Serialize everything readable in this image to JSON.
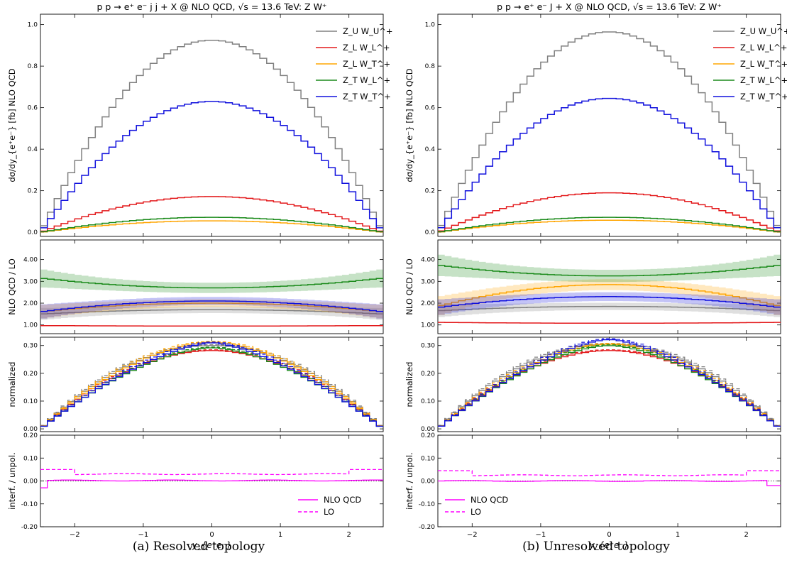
{
  "panels": [
    {
      "title": "p p → e⁺ e⁻ j j + X @ NLO QCD, √s = 13.6 TeV: Z W⁺",
      "caption": "(a)  Resolved topology",
      "ylabels": [
        "dσ/dy_{e⁺e⁻} [fb] NLO QCD",
        "NLO QCD / LO",
        "normalized",
        "interf. / unpol."
      ],
      "xlabel": "y_{e⁺e⁻}"
    },
    {
      "title": "p p → e⁺ e⁻ J + X @ NLO QCD, √s = 13.6 TeV: Z W⁺",
      "caption": "(b)  Unresolved topology",
      "ylabels": [
        "dσ/dy_{e⁺e⁻} [fb] NLO QCD",
        "NLO QCD / LO",
        "normalized",
        "interf. / unpol."
      ],
      "xlabel": "y_{e⁺e⁻}"
    }
  ],
  "legend_main": [
    {
      "name": "Z_U W_U^+",
      "color": "#808080"
    },
    {
      "name": "Z_L W_L^+",
      "color": "#e31a1c"
    },
    {
      "name": "Z_L W_T^+",
      "color": "#ffa500"
    },
    {
      "name": "Z_T W_L^+",
      "color": "#1a8a1a"
    },
    {
      "name": "Z_T W_T^+",
      "color": "#1010dd"
    }
  ],
  "legend_interf": [
    {
      "name": "NLO QCD",
      "style": "solid",
      "color": "#ff00ff"
    },
    {
      "name": "LO",
      "style": "dashed",
      "color": "#ff00ff"
    }
  ],
  "chart_data": [
    {
      "type": "line",
      "title": "p p → e⁺ e⁻ j j + X @ NLO QCD, √s = 13.6 TeV: Z W⁺",
      "xlabel": "y_{e⁺e⁻}",
      "xlim": [
        -2.5,
        2.5
      ],
      "xticks": [
        -2,
        -1,
        0,
        1,
        2
      ],
      "subplots": [
        {
          "ylabel": "dσ/dy_{e⁺e⁻} [fb] NLO QCD",
          "ylim": [
            -0.02,
            1.05
          ],
          "yticks": [
            "0.0",
            "0.2",
            "0.4",
            "0.6",
            "0.8",
            "1.0"
          ],
          "series": [
            {
              "name": "Z_U W_U^+",
              "peak": 0.925,
              "edge": 0.0
            },
            {
              "name": "Z_L W_L^+",
              "peak": 0.172,
              "edge": 0.0
            },
            {
              "name": "Z_L W_T^+",
              "peak": 0.055,
              "edge": 0.0
            },
            {
              "name": "Z_T W_L^+",
              "peak": 0.072,
              "edge": 0.0
            },
            {
              "name": "Z_T W_T^+",
              "peak": 0.63,
              "edge": 0.0
            }
          ]
        },
        {
          "ylabel": "NLO QCD / LO",
          "ylim": [
            0.6,
            4.9
          ],
          "yticks": [
            "1.00",
            "2.00",
            "3.00",
            "4.00"
          ],
          "series": [
            {
              "name": "Z_U W_U^+",
              "center": 1.7,
              "edge": 1.5
            },
            {
              "name": "Z_L W_L^+",
              "center": 0.95,
              "edge": 0.97
            },
            {
              "name": "Z_L W_T^+",
              "center": 2.0,
              "edge": 1.6
            },
            {
              "name": "Z_T W_L^+",
              "center": 2.7,
              "edge": 3.15
            },
            {
              "name": "Z_T W_T^+",
              "center": 2.1,
              "edge": 1.6
            }
          ]
        },
        {
          "ylabel": "normalized",
          "ylim": [
            -0.01,
            0.33
          ],
          "yticks": [
            "0.00",
            "0.10",
            "0.20",
            "0.30"
          ],
          "series": [
            {
              "name": "Z_U W_U^+",
              "peak": 0.3
            },
            {
              "name": "Z_L W_L^+",
              "peak": 0.282
            },
            {
              "name": "Z_L W_T^+",
              "peak": 0.312
            },
            {
              "name": "Z_T W_L^+",
              "peak": 0.292
            },
            {
              "name": "Z_T W_T^+",
              "peak": 0.31
            }
          ]
        },
        {
          "ylabel": "interf. / unpol.",
          "ylim": [
            -0.2,
            0.2
          ],
          "yticks": [
            "-0.20",
            "-0.10",
            "0.00",
            "0.10",
            "0.20"
          ],
          "series": [
            {
              "name": "NLO QCD",
              "value": 0.002
            },
            {
              "name": "LO",
              "value": 0.03
            }
          ]
        }
      ]
    },
    {
      "type": "line",
      "title": "p p → e⁺ e⁻ J + X @ NLO QCD, √s = 13.6 TeV: Z W⁺",
      "xlabel": "y_{e⁺e⁻}",
      "xlim": [
        -2.5,
        2.5
      ],
      "xticks": [
        -2,
        -1,
        0,
        1,
        2
      ],
      "subplots": [
        {
          "ylabel": "dσ/dy_{e⁺e⁻} [fb] NLO QCD",
          "ylim": [
            -0.02,
            1.05
          ],
          "yticks": [
            "0.0",
            "0.2",
            "0.4",
            "0.6",
            "0.8",
            "1.0"
          ],
          "series": [
            {
              "name": "Z_U W_U^+",
              "peak": 0.965,
              "edge": 0.0
            },
            {
              "name": "Z_L W_L^+",
              "peak": 0.19,
              "edge": 0.0
            },
            {
              "name": "Z_L W_T^+",
              "peak": 0.058,
              "edge": 0.0
            },
            {
              "name": "Z_T W_L^+",
              "peak": 0.072,
              "edge": 0.0
            },
            {
              "name": "Z_T W_T^+",
              "peak": 0.645,
              "edge": 0.0
            }
          ]
        },
        {
          "ylabel": "NLO QCD / LO",
          "ylim": [
            0.6,
            4.9
          ],
          "yticks": [
            "1.00",
            "2.00",
            "3.00",
            "4.00"
          ],
          "series": [
            {
              "name": "Z_U W_U^+",
              "center": 1.85,
              "edge": 1.65
            },
            {
              "name": "Z_L W_L^+",
              "center": 1.08,
              "edge": 1.12
            },
            {
              "name": "Z_L W_T^+",
              "center": 2.85,
              "edge": 1.85
            },
            {
              "name": "Z_T W_L^+",
              "center": 3.25,
              "edge": 3.75
            },
            {
              "name": "Z_T W_T^+",
              "center": 2.3,
              "edge": 1.8
            }
          ]
        },
        {
          "ylabel": "normalized",
          "ylim": [
            -0.01,
            0.33
          ],
          "yticks": [
            "0.00",
            "0.10",
            "0.20",
            "0.30"
          ],
          "series": [
            {
              "name": "Z_U W_U^+",
              "peak": 0.305
            },
            {
              "name": "Z_L W_L^+",
              "peak": 0.282
            },
            {
              "name": "Z_L W_T^+",
              "peak": 0.305
            },
            {
              "name": "Z_T W_L^+",
              "peak": 0.3
            },
            {
              "name": "Z_T W_T^+",
              "peak": 0.322
            }
          ]
        },
        {
          "ylabel": "interf. / unpol.",
          "ylim": [
            -0.2,
            0.2
          ],
          "yticks": [
            "-0.20",
            "-0.10",
            "0.00",
            "0.10",
            "0.20"
          ],
          "series": [
            {
              "name": "NLO QCD",
              "value": 0.0
            },
            {
              "name": "LO",
              "value": 0.025
            }
          ]
        }
      ]
    }
  ]
}
